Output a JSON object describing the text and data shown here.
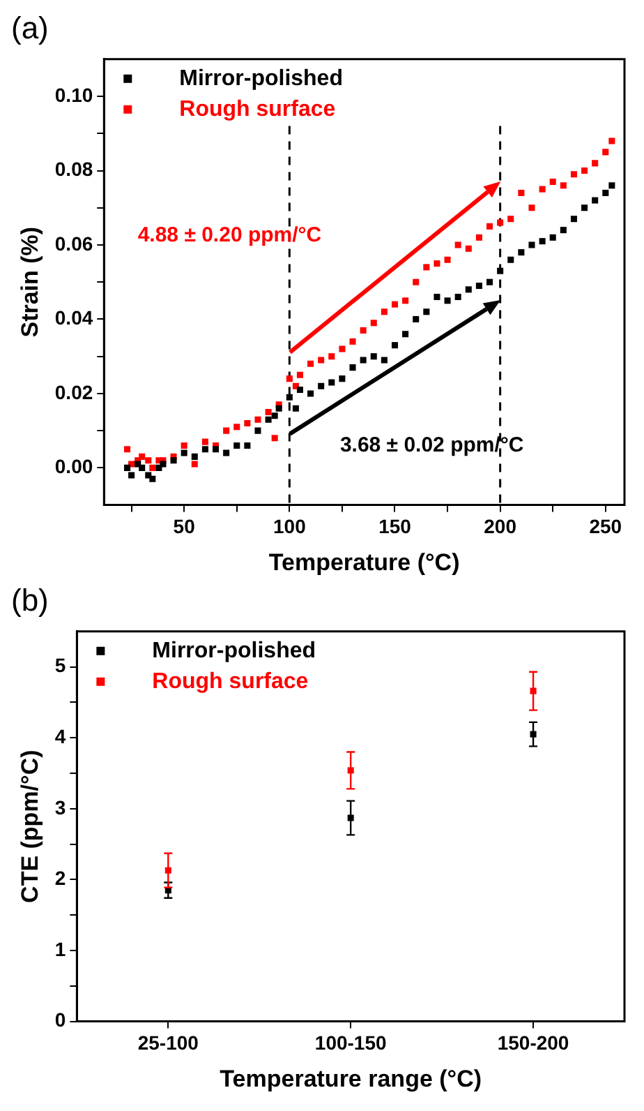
{
  "chart_data": [
    {
      "type": "scatter",
      "title": "(a)",
      "xlabel": "Temperature (°C)",
      "ylabel": "Strain (%)",
      "x": [
        23,
        25,
        28,
        30,
        33,
        35,
        38,
        40,
        45,
        50,
        55,
        60,
        65,
        70,
        75,
        80,
        85,
        90,
        93,
        95,
        100,
        103,
        105,
        110,
        115,
        120,
        125,
        130,
        135,
        140,
        145,
        150,
        155,
        160,
        165,
        170,
        175,
        180,
        185,
        190,
        195,
        200,
        205,
        210,
        215,
        220,
        225,
        230,
        235,
        240,
        245,
        250,
        253
      ],
      "series": [
        {
          "name": "Mirror-polished",
          "color": "#000000",
          "values": [
            0.0,
            -0.002,
            0.001,
            0.0,
            -0.002,
            -0.003,
            0.0,
            0.001,
            0.002,
            0.004,
            0.003,
            0.005,
            0.005,
            0.004,
            0.006,
            0.006,
            0.01,
            0.013,
            0.014,
            0.016,
            0.019,
            0.016,
            0.021,
            0.02,
            0.022,
            0.023,
            0.024,
            0.027,
            0.029,
            0.03,
            0.029,
            0.033,
            0.036,
            0.04,
            0.042,
            0.046,
            0.045,
            0.046,
            0.048,
            0.049,
            0.05,
            0.053,
            0.056,
            0.058,
            0.06,
            0.061,
            0.062,
            0.064,
            0.067,
            0.07,
            0.072,
            0.074,
            0.076
          ]
        },
        {
          "name": "Rough surface",
          "color": "#ff0000",
          "values": [
            0.005,
            0.001,
            0.002,
            0.003,
            0.002,
            0.0,
            0.002,
            0.002,
            0.003,
            0.006,
            0.001,
            0.007,
            0.006,
            0.01,
            0.011,
            0.012,
            0.013,
            0.015,
            0.008,
            0.017,
            0.024,
            0.022,
            0.025,
            0.028,
            0.029,
            0.03,
            0.032,
            0.034,
            0.037,
            0.039,
            0.042,
            0.044,
            0.045,
            0.05,
            0.054,
            0.055,
            0.056,
            0.06,
            0.059,
            0.062,
            0.065,
            0.066,
            0.067,
            0.074,
            0.07,
            0.075,
            0.077,
            0.076,
            0.079,
            0.08,
            0.082,
            0.085,
            0.088
          ]
        }
      ],
      "xlim": [
        12,
        259
      ],
      "xticks": [
        {
          "value": 25,
          "label": null
        },
        50,
        {
          "value": 75,
          "label": null
        },
        100,
        {
          "value": 125,
          "label": null
        },
        150,
        {
          "value": 175,
          "label": null
        },
        200,
        {
          "value": 225,
          "label": null
        },
        250
      ],
      "ylim": [
        -0.01,
        0.11
      ],
      "yticks": [
        {
          "value": 0,
          "label": "0.00"
        },
        {
          "value": 0.01,
          "label": null
        },
        0.02,
        {
          "value": 0.03,
          "label": null
        },
        0.04,
        {
          "value": 0.05,
          "label": null
        },
        0.06,
        {
          "value": 0.07,
          "label": null
        },
        0.08,
        {
          "value": 0.09,
          "label": null
        },
        {
          "value": 0.1,
          "label": "0.10"
        }
      ],
      "ref_lines": [
        {
          "axis": "x",
          "value": 100,
          "color": "#000000",
          "line_style": "dashed"
        },
        {
          "axis": "x",
          "value": 200,
          "color": "#000000",
          "line_style": "dashed"
        }
      ],
      "annotations": [
        "4.88 ± 0.20 ppm/°C",
        "3.68 ± 0.02 ppm/°C"
      ],
      "marker": "square",
      "grid": false,
      "legend": "top left"
    },
    {
      "type": "scatter",
      "title": "(b)",
      "xlabel": "Temperature range (°C)",
      "ylabel": "CTE (ppm/°C)",
      "categories": [
        "25-100",
        "100-150",
        "150-200"
      ],
      "series": [
        {
          "name": "Mirror-polished",
          "color": "#000000",
          "values": [
            1.85,
            2.87,
            4.05
          ],
          "errors": [
            0.11,
            0.24,
            0.17
          ]
        },
        {
          "name": "Rough surface",
          "color": "#ff0000",
          "values": [
            2.13,
            3.54,
            4.66
          ],
          "errors": [
            0.24,
            0.26,
            0.27
          ]
        }
      ],
      "ylim": [
        0,
        5.5
      ],
      "yticks": [
        0,
        {
          "value": 0.5,
          "label": null
        },
        1,
        {
          "value": 1.5,
          "label": null
        },
        2,
        {
          "value": 2.5,
          "label": null
        },
        3,
        {
          "value": 3.5,
          "label": null
        },
        4,
        {
          "value": 4.5,
          "label": null
        },
        5
      ],
      "marker": "square",
      "grid": false,
      "legend": "top left"
    }
  ]
}
